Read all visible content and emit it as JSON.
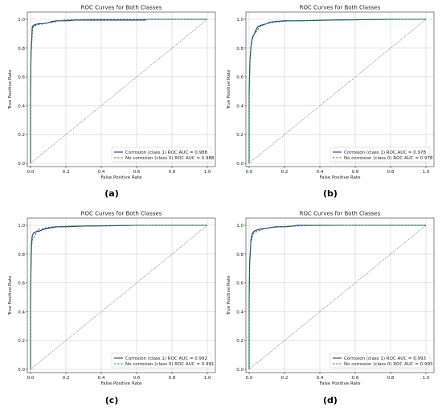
{
  "chart_data": [
    {
      "panel_label": "(a)",
      "type": "line",
      "title": "ROC Curves for Both Classes",
      "xlabel": "False Positive Rate",
      "ylabel": "True Positive Rate",
      "xlim": [
        0.0,
        1.0
      ],
      "ylim": [
        0.0,
        1.0
      ],
      "xticks": [
        "0.0",
        "0.2",
        "0.4",
        "0.6",
        "0.8",
        "1.0"
      ],
      "yticks": [
        "0.0",
        "0.2",
        "0.4",
        "0.6",
        "0.8",
        "1.0"
      ],
      "grid": true,
      "legend_position": "lower-right",
      "series": [
        {
          "name": "Corrosion (class 1) ROC AUC = 0.988",
          "color": "#1f1f9e",
          "style": "solid",
          "x": [
            0,
            0,
            0.003,
            0.005,
            0.008,
            0.01,
            0.02,
            0.03,
            0.05,
            0.07,
            0.1,
            0.12,
            0.15,
            0.2,
            0.25,
            0.3,
            0.45,
            0.65,
            0.65,
            1.0
          ],
          "y": [
            0,
            0.5,
            0.78,
            0.8,
            0.9,
            0.95,
            0.96,
            0.965,
            0.97,
            0.97,
            0.975,
            0.985,
            0.99,
            0.99,
            0.995,
            0.995,
            0.995,
            0.995,
            1.0,
            1.0
          ]
        },
        {
          "name": "No corrosion (class 0) ROC AUC = 0.988",
          "color": "#1a9a1a",
          "style": "dashed",
          "x": [
            0,
            0,
            0.003,
            0.006,
            0.009,
            0.012,
            0.02,
            0.035,
            0.05,
            0.08,
            0.1,
            0.13,
            0.16,
            0.2,
            0.25,
            0.35,
            0.5,
            1.0
          ],
          "y": [
            0,
            0.45,
            0.75,
            0.82,
            0.88,
            0.94,
            0.955,
            0.96,
            0.965,
            0.97,
            0.975,
            0.98,
            0.99,
            0.995,
            0.997,
            1.0,
            1.0,
            1.0
          ]
        },
        {
          "name": "",
          "color": "#555555",
          "style": "dotted",
          "x": [
            0,
            1
          ],
          "y": [
            0,
            1
          ]
        }
      ]
    },
    {
      "panel_label": "(b)",
      "type": "line",
      "title": "ROC Curves for Both Classes",
      "xlabel": "False Positive Rate",
      "ylabel": "True Positive Rate",
      "xlim": [
        0.0,
        1.0
      ],
      "ylim": [
        0.0,
        1.0
      ],
      "xticks": [
        "0.0",
        "0.2",
        "0.4",
        "0.6",
        "0.8",
        "1.0"
      ],
      "yticks": [
        "0.0",
        "0.2",
        "0.4",
        "0.6",
        "0.8",
        "1.0"
      ],
      "grid": true,
      "legend_position": "lower-right",
      "series": [
        {
          "name": "Corrosion (class 1) ROC AUC = 0.978",
          "color": "#1f1f9e",
          "style": "solid",
          "x": [
            0,
            0,
            0.005,
            0.01,
            0.015,
            0.02,
            0.03,
            0.04,
            0.05,
            0.07,
            0.1,
            0.12,
            0.15,
            0.2,
            0.3,
            0.45,
            0.6,
            0.8,
            1.0
          ],
          "y": [
            0,
            0.5,
            0.72,
            0.8,
            0.85,
            0.88,
            0.9,
            0.93,
            0.95,
            0.96,
            0.97,
            0.98,
            0.985,
            0.99,
            0.99,
            0.995,
            0.997,
            1.0,
            1.0
          ]
        },
        {
          "name": "No corrosion (class 0) ROC AUC = 0.978",
          "color": "#1a9a1a",
          "style": "dashed",
          "x": [
            0,
            0,
            0.004,
            0.008,
            0.012,
            0.02,
            0.03,
            0.045,
            0.06,
            0.08,
            0.1,
            0.14,
            0.18,
            0.25,
            0.4,
            0.6,
            0.85,
            1.0
          ],
          "y": [
            0,
            0.45,
            0.7,
            0.78,
            0.84,
            0.87,
            0.9,
            0.92,
            0.95,
            0.96,
            0.97,
            0.98,
            0.985,
            0.99,
            0.993,
            0.997,
            1.0,
            1.0
          ]
        },
        {
          "name": "",
          "color": "#555555",
          "style": "dotted",
          "x": [
            0,
            1
          ],
          "y": [
            0,
            1
          ]
        }
      ]
    },
    {
      "panel_label": "(c)",
      "type": "line",
      "title": "ROC Curves for Both Classes",
      "xlabel": "False Positive Rate",
      "ylabel": "True Positive Rate",
      "xlim": [
        0.0,
        1.0
      ],
      "ylim": [
        0.0,
        1.0
      ],
      "xticks": [
        "0.0",
        "0.2",
        "0.4",
        "0.6",
        "0.8",
        "1.0"
      ],
      "yticks": [
        "0.0",
        "0.2",
        "0.4",
        "0.6",
        "0.8",
        "1.0"
      ],
      "grid": true,
      "legend_position": "lower-right",
      "series": [
        {
          "name": "Corrosion (class 1) ROC AUC = 0.992",
          "color": "#1f1f9e",
          "style": "solid",
          "x": [
            0,
            0,
            0.003,
            0.006,
            0.01,
            0.015,
            0.02,
            0.03,
            0.05,
            0.07,
            0.1,
            0.15,
            0.2,
            0.3,
            0.45,
            0.6,
            1.0
          ],
          "y": [
            0,
            0.5,
            0.75,
            0.88,
            0.93,
            0.94,
            0.95,
            0.955,
            0.96,
            0.97,
            0.98,
            0.99,
            0.99,
            0.995,
            0.997,
            1.0,
            1.0
          ]
        },
        {
          "name": "No corrosion (class 0) ROC AUC = 0.991",
          "color": "#1a9a1a",
          "style": "dashed",
          "x": [
            0,
            0,
            0.003,
            0.006,
            0.01,
            0.02,
            0.03,
            0.04,
            0.06,
            0.08,
            0.1,
            0.13,
            0.18,
            0.25,
            0.4,
            0.55,
            1.0
          ],
          "y": [
            0,
            0.45,
            0.7,
            0.85,
            0.9,
            0.92,
            0.94,
            0.97,
            0.975,
            0.98,
            0.985,
            0.99,
            0.993,
            0.995,
            0.997,
            1.0,
            1.0
          ]
        },
        {
          "name": "",
          "color": "#555555",
          "style": "dotted",
          "x": [
            0,
            1
          ],
          "y": [
            0,
            1
          ]
        }
      ]
    },
    {
      "panel_label": "(d)",
      "type": "line",
      "title": "ROC Curves for Both Classes",
      "xlabel": "False Positive Rate",
      "ylabel": "True Positive Rate",
      "xlim": [
        0.0,
        1.0
      ],
      "ylim": [
        0.0,
        1.0
      ],
      "xticks": [
        "0.0",
        "0.2",
        "0.4",
        "0.6",
        "0.8",
        "1.0"
      ],
      "yticks": [
        "0.0",
        "0.2",
        "0.4",
        "0.6",
        "0.8",
        "1.0"
      ],
      "grid": true,
      "legend_position": "lower-right",
      "series": [
        {
          "name": "Corrosion (class 1) ROC AUC = 0.993",
          "color": "#1f1f9e",
          "style": "solid",
          "x": [
            0,
            0,
            0.003,
            0.006,
            0.01,
            0.015,
            0.02,
            0.03,
            0.05,
            0.07,
            0.1,
            0.15,
            0.2,
            0.25,
            0.27,
            0.4,
            1.0
          ],
          "y": [
            0,
            0.5,
            0.75,
            0.8,
            0.9,
            0.93,
            0.95,
            0.96,
            0.97,
            0.975,
            0.98,
            0.99,
            0.99,
            0.995,
            1.0,
            1.0,
            1.0
          ]
        },
        {
          "name": "No corrosion (class 0) ROC AUC = 0.993",
          "color": "#1a9a1a",
          "style": "dashed",
          "x": [
            0,
            0,
            0.003,
            0.006,
            0.01,
            0.02,
            0.03,
            0.05,
            0.07,
            0.1,
            0.13,
            0.18,
            0.25,
            0.35,
            0.5,
            1.0
          ],
          "y": [
            0,
            0.45,
            0.72,
            0.78,
            0.88,
            0.93,
            0.95,
            0.96,
            0.97,
            0.98,
            0.985,
            0.99,
            0.995,
            0.998,
            1.0,
            1.0
          ]
        },
        {
          "name": "",
          "color": "#555555",
          "style": "dotted",
          "x": [
            0,
            1
          ],
          "y": [
            0,
            1
          ]
        }
      ]
    }
  ]
}
